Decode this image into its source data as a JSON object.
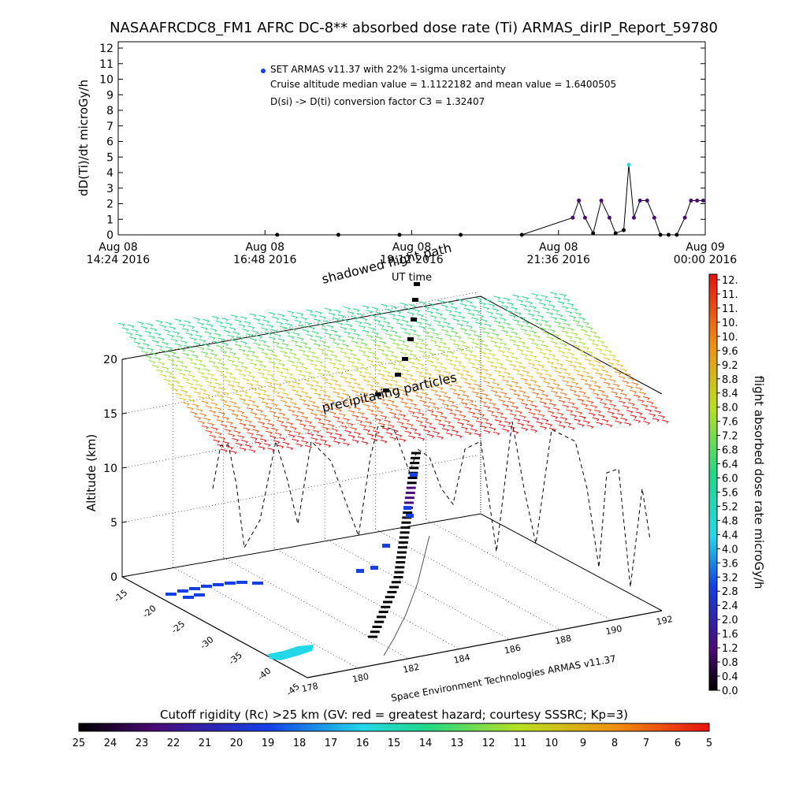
{
  "title": "NASAAFRCDC8_FM1 AFRC DC-8** absorbed dose rate (Ti) ARMAS_dirIP_Report_59780",
  "top_chart": {
    "ylabel": "dD(Ti)/dt microGy/h",
    "xlabel": "UT time",
    "legend_lines": [
      "SET ARMAS v11.37 with 22% 1-sigma uncertainty",
      "Cruise altitude median value = 1.1122182 and mean value = 1.6400505",
      "D(si) -> D(ti) conversion factor C3 = 1.32407"
    ],
    "y_ticks": [
      "0",
      "1",
      "2",
      "3",
      "4",
      "5",
      "6",
      "7",
      "8",
      "9",
      "10",
      "11",
      "12"
    ],
    "x_tick_dates": [
      "Aug 08",
      "Aug 08",
      "Aug 08",
      "Aug 08",
      "Aug 09"
    ],
    "x_tick_times": [
      "14:24 2016",
      "16:48 2016",
      "19:12 2016",
      "21:36 2016",
      "00:00 2016"
    ]
  },
  "globe_panel": {
    "zlabel": "Altitude (km)",
    "z_ticks": [
      "0",
      "5",
      "10",
      "15",
      "20"
    ],
    "lat_ticks": [
      "-15",
      "-20",
      "-25",
      "-30",
      "-35",
      "-40",
      "-45"
    ],
    "lon_ticks": [
      "178",
      "180",
      "182",
      "184",
      "186",
      "188",
      "190",
      "192"
    ],
    "annotation_shadowed": "shadowed flight path",
    "annotation_precip": "precipitating particles",
    "credit": "Space Environment Technologies ARMAS v11.37"
  },
  "right_colorbar": {
    "label": "flight absorbed dose rate microGy/h",
    "ticks": [
      "12.",
      "11.",
      "11.",
      "10.",
      "10.",
      "9.6",
      "9.2",
      "8.8",
      "8.4",
      "8.0",
      "7.6",
      "7.2",
      "6.8",
      "6.4",
      "6.0",
      "5.6",
      "5.2",
      "4.8",
      "4.4",
      "4.0",
      "3.6",
      "3.2",
      "2.8",
      "2.4",
      "2.0",
      "1.6",
      "1.2",
      "0.8",
      "0.4",
      "0.0"
    ]
  },
  "bottom_colorbar": {
    "label": "Cutoff rigidity (Rc) >25 km (GV: red = greatest hazard; courtesy SSSRC; Kp=3)",
    "ticks": [
      "25",
      "24",
      "23",
      "22",
      "21",
      "20",
      "19",
      "18",
      "17",
      "16",
      "15",
      "14",
      "13",
      "12",
      "11",
      "10",
      "9",
      "8",
      "7",
      "6",
      "5"
    ]
  },
  "chart_data": {
    "type": "scatter",
    "title": "NASAAFRCDC8_FM1 AFRC DC-8** absorbed dose rate (Ti) ARMAS_dirIP_Report_59780",
    "xlabel": "UT time",
    "ylabel": "dD(Ti)/dt microGy/h",
    "ylim": [
      0,
      12
    ],
    "xlim": [
      "2016-08-08 14:24",
      "2016-08-09 00:00"
    ],
    "grid": false,
    "legend": "top-center",
    "series": [
      {
        "name": "SET ARMAS v11.37 with 22% 1-sigma uncertainty",
        "x": [
          "2016-08-08 17:00",
          "2016-08-08 18:00",
          "2016-08-08 19:00",
          "2016-08-08 20:00",
          "2016-08-08 21:00",
          "2016-08-08 21:50",
          "2016-08-08 21:56",
          "2016-08-08 22:02",
          "2016-08-08 22:10",
          "2016-08-08 22:18",
          "2016-08-08 22:26",
          "2016-08-08 22:32",
          "2016-08-08 22:40",
          "2016-08-08 22:45",
          "2016-08-08 22:50",
          "2016-08-08 22:56",
          "2016-08-08 23:03",
          "2016-08-08 23:10",
          "2016-08-08 23:16",
          "2016-08-08 23:24",
          "2016-08-08 23:32",
          "2016-08-08 23:40",
          "2016-08-08 23:46",
          "2016-08-08 23:52",
          "2016-08-08 23:58"
        ],
        "y": [
          0,
          0,
          0,
          0,
          0,
          1.1,
          2.2,
          1.1,
          0.1,
          2.2,
          1.1,
          0.1,
          0.3,
          4.5,
          1.1,
          2.2,
          2.2,
          1.1,
          0.0,
          0.0,
          0.0,
          1.1,
          2.2,
          2.2,
          2.2
        ]
      }
    ]
  }
}
